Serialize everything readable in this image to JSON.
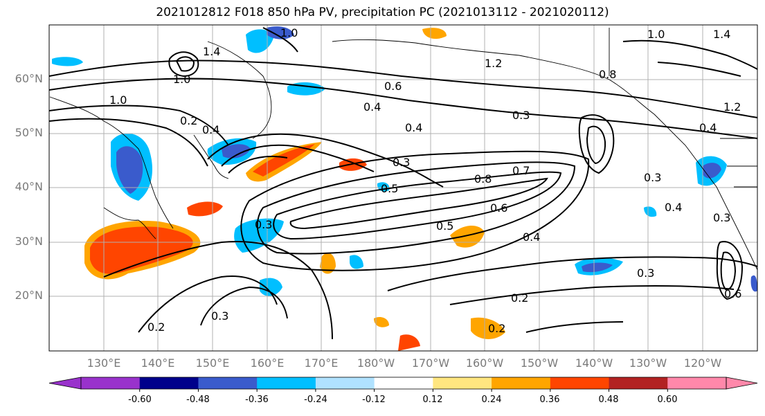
{
  "title": "2021012812 F018 850 hPa PV, precipitation PC (2021013112 - 2021020112)",
  "lat_labels": [
    "60°N",
    "50°N",
    "40°N",
    "30°N",
    "20°N"
  ],
  "lon_labels": [
    "130°E",
    "140°E",
    "150°E",
    "160°E",
    "170°E",
    "180°W",
    "170°W",
    "160°W",
    "150°W",
    "140°W",
    "130°W",
    "120°W"
  ],
  "contour_labels": [
    "1.0",
    "1.4",
    "1.0",
    "1.2",
    "1.0",
    "0.6",
    "0.4",
    "0.3",
    "0.2",
    "0.4",
    "0.3",
    "0.4",
    "0.5",
    "0.8",
    "0.7",
    "0.6",
    "0.5",
    "0.4",
    "0.3",
    "0.2",
    "0.3",
    "0.2",
    "1.0",
    "0.8",
    "1.2",
    "1.4",
    "0.4",
    "0.3",
    "0.4",
    "0.3",
    "0.2",
    "0.6",
    "0.3"
  ],
  "colorbar": {
    "ticks": [
      "-0.60",
      "-0.48",
      "-0.36",
      "-0.24",
      "-0.12",
      "0.12",
      "0.24",
      "0.36",
      "0.48",
      "0.60"
    ],
    "colors": [
      "#9932cc",
      "#00008b",
      "#3a5bcc",
      "#00bfff",
      "#b0e2ff",
      "#ffffff",
      "#ffe680",
      "#ffa500",
      "#ff4500",
      "#b22222",
      "#ff88aa"
    ]
  }
}
